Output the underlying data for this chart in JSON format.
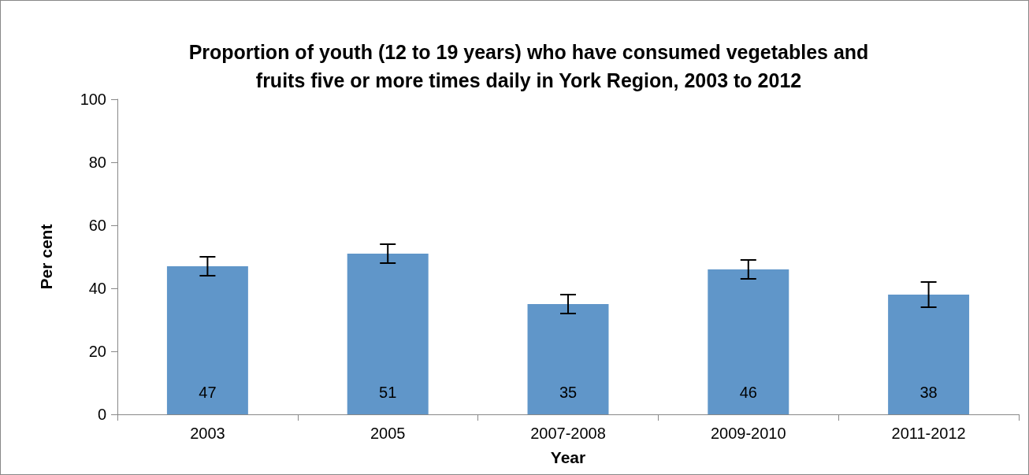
{
  "chart_data": {
    "type": "bar",
    "title": "Proportion of youth (12 to 19 years) who have consumed vegetables and\nfruits five or more times daily in York Region, 2003 to 2012",
    "xlabel": "Year",
    "ylabel": "Per cent",
    "categories": [
      "2003",
      "2005",
      "2007-2008",
      "2009-2010",
      "2011-2012"
    ],
    "values": [
      47,
      51,
      35,
      46,
      38
    ],
    "errors": [
      [
        44,
        50
      ],
      [
        48,
        54
      ],
      [
        32,
        38
      ],
      [
        43,
        49
      ],
      [
        34,
        42
      ]
    ],
    "color": "#6096c9",
    "ylim": [
      0,
      100
    ],
    "yticks": [
      0,
      20,
      40,
      60,
      80,
      100
    ],
    "grid": false,
    "data_labels": true
  }
}
